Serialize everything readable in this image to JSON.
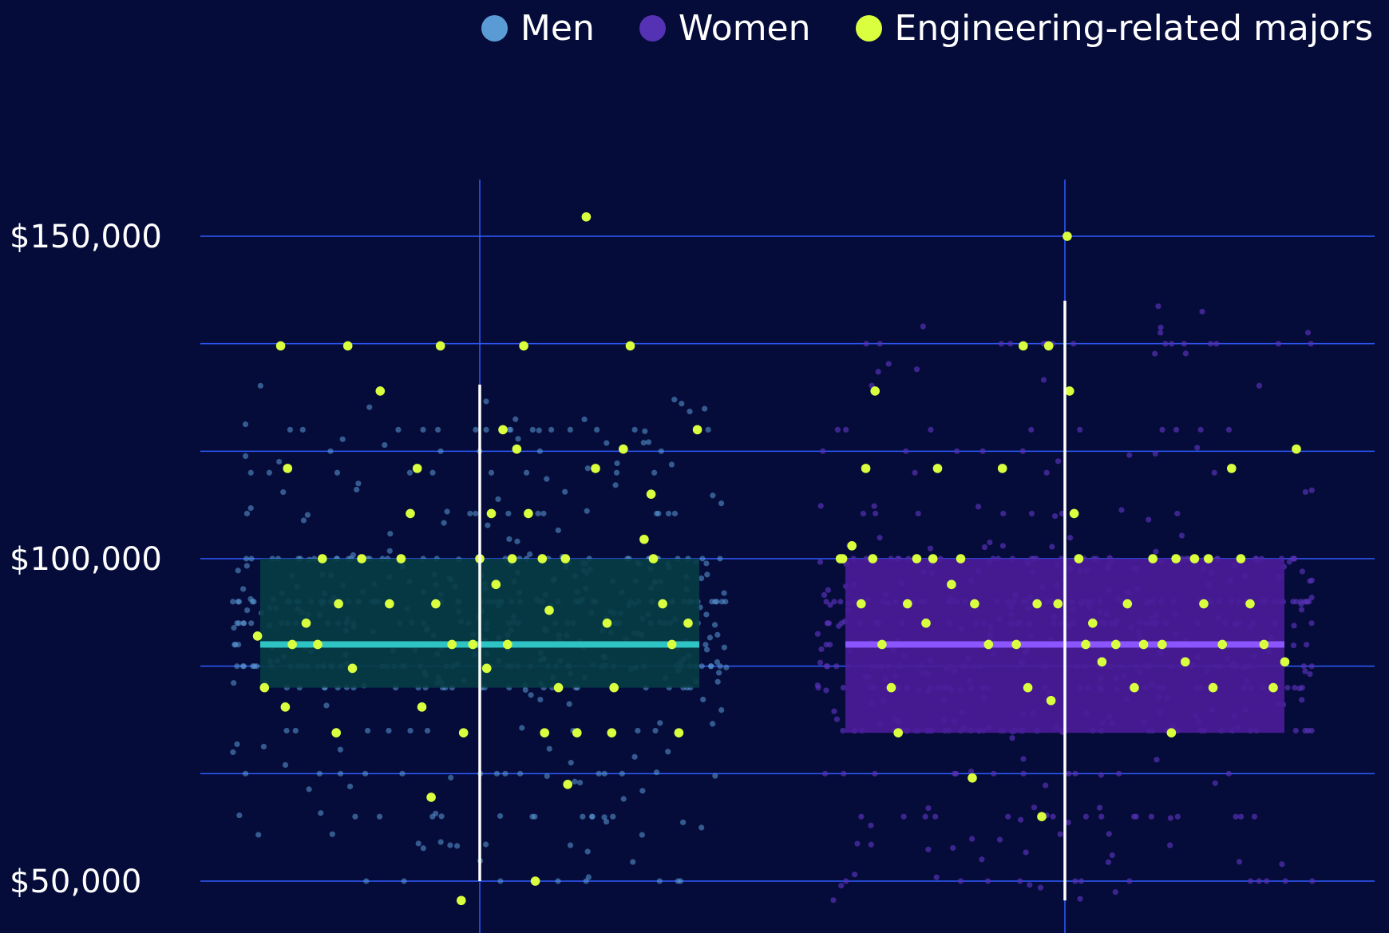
{
  "legend": {
    "men": {
      "label": "Men",
      "color": "#5b9bd5"
    },
    "women": {
      "label": "Women",
      "color": "#5531b4"
    },
    "engineering": {
      "label": "Engineering-related majors",
      "color": "#d9ff3f"
    }
  },
  "colors": {
    "background": "#050c3a",
    "gridline": "#2f5bff",
    "men_box": "#063d45",
    "men_median": "#2ec4c4",
    "women_box": "#4b1c99",
    "women_median": "#8b55ff",
    "whisker": "#ffffff"
  },
  "chart_data": {
    "type": "box",
    "title": "",
    "xlabel": "",
    "ylabel": "",
    "ylim": [
      43000,
      160000
    ],
    "y_ticks": [
      50000,
      66667,
      83333,
      100000,
      116667,
      133333,
      150000
    ],
    "y_tick_labels": {
      "50000": "$50,000",
      "100000": "$100,000",
      "150000": "$150,000"
    },
    "grid": true,
    "legend_position": "top-right",
    "groups": [
      {
        "name": "Men",
        "q1": 80000,
        "median": 86700,
        "q3": 100000,
        "whisker_low": 50000,
        "whisker_high": 127000,
        "point_color": "#5b9bd5",
        "highlight_points": [
          [
            -0.96,
            88000
          ],
          [
            -0.93,
            80000
          ],
          [
            -0.84,
            77000
          ],
          [
            -0.83,
            114000
          ],
          [
            -0.81,
            86700
          ],
          [
            -0.75,
            90000
          ],
          [
            -0.7,
            86700
          ],
          [
            -0.68,
            100000
          ],
          [
            -0.61,
            93000
          ],
          [
            -0.57,
            133000
          ],
          [
            -0.55,
            83000
          ],
          [
            -0.51,
            100000
          ],
          [
            -0.43,
            126000
          ],
          [
            -0.39,
            93000
          ],
          [
            -0.34,
            100000
          ],
          [
            -0.3,
            107000
          ],
          [
            -0.27,
            114000
          ],
          [
            -0.25,
            77000
          ],
          [
            -0.21,
            63000
          ],
          [
            -0.19,
            93000
          ],
          [
            -0.17,
            133000
          ],
          [
            -0.12,
            86700
          ],
          [
            -0.07,
            73000
          ],
          [
            -0.03,
            86700
          ],
          [
            0.0,
            100000
          ],
          [
            0.03,
            83000
          ],
          [
            0.05,
            107000
          ],
          [
            0.07,
            96000
          ],
          [
            0.1,
            120000
          ],
          [
            0.12,
            86700
          ],
          [
            0.14,
            100000
          ],
          [
            0.16,
            117000
          ],
          [
            0.19,
            133000
          ],
          [
            0.21,
            107000
          ],
          [
            0.24,
            50000
          ],
          [
            0.27,
            100000
          ],
          [
            0.3,
            92000
          ],
          [
            0.34,
            80000
          ],
          [
            0.37,
            100000
          ],
          [
            0.42,
            73000
          ],
          [
            0.46,
            153000
          ],
          [
            0.5,
            114000
          ],
          [
            0.55,
            90000
          ],
          [
            0.58,
            80000
          ],
          [
            0.62,
            117000
          ],
          [
            0.65,
            133000
          ],
          [
            0.71,
            103000
          ],
          [
            0.75,
            100000
          ],
          [
            0.79,
            93000
          ],
          [
            0.83,
            86700
          ],
          [
            0.86,
            73000
          ],
          [
            0.9,
            90000
          ],
          [
            0.94,
            120000
          ],
          [
            -0.86,
            133000
          ],
          [
            -0.62,
            73000
          ],
          [
            0.38,
            65000
          ],
          [
            -0.08,
            47000
          ],
          [
            0.28,
            73000
          ],
          [
            0.57,
            73000
          ],
          [
            0.74,
            110000
          ]
        ]
      },
      {
        "name": "Women",
        "q1": 73000,
        "median": 86700,
        "q3": 100000,
        "whisker_low": 47000,
        "whisker_high": 140000,
        "point_color": "#5531b4",
        "highlight_points": [
          [
            -0.96,
            100000
          ],
          [
            -0.92,
            102000
          ],
          [
            -0.88,
            93000
          ],
          [
            -0.86,
            114000
          ],
          [
            -0.82,
            126000
          ],
          [
            -0.79,
            86700
          ],
          [
            -0.75,
            80000
          ],
          [
            -0.72,
            73000
          ],
          [
            -0.68,
            93000
          ],
          [
            -0.64,
            100000
          ],
          [
            -0.6,
            90000
          ],
          [
            -0.55,
            114000
          ],
          [
            -0.49,
            96000
          ],
          [
            -0.45,
            100000
          ],
          [
            -0.39,
            93000
          ],
          [
            -0.33,
            86700
          ],
          [
            -0.27,
            114000
          ],
          [
            -0.21,
            86700
          ],
          [
            -0.16,
            80000
          ],
          [
            -0.12,
            93000
          ],
          [
            -0.1,
            60000
          ],
          [
            -0.07,
            133000
          ],
          [
            -0.03,
            93000
          ],
          [
            0.01,
            150000
          ],
          [
            0.02,
            126000
          ],
          [
            0.04,
            107000
          ],
          [
            0.06,
            100000
          ],
          [
            0.09,
            86700
          ],
          [
            0.12,
            90000
          ],
          [
            0.16,
            84000
          ],
          [
            0.22,
            86700
          ],
          [
            0.27,
            93000
          ],
          [
            0.3,
            80000
          ],
          [
            0.34,
            86700
          ],
          [
            0.38,
            100000
          ],
          [
            0.42,
            86700
          ],
          [
            0.46,
            73000
          ],
          [
            0.52,
            84000
          ],
          [
            0.56,
            100000
          ],
          [
            0.6,
            93000
          ],
          [
            0.64,
            80000
          ],
          [
            0.68,
            86700
          ],
          [
            0.72,
            114000
          ],
          [
            0.76,
            100000
          ],
          [
            0.8,
            93000
          ],
          [
            0.86,
            86700
          ],
          [
            0.9,
            80000
          ],
          [
            0.95,
            84000
          ],
          [
            1.0,
            117000
          ],
          [
            -0.97,
            100000
          ],
          [
            -0.83,
            100000
          ],
          [
            -0.57,
            100000
          ],
          [
            -0.4,
            66000
          ],
          [
            -0.06,
            78000
          ],
          [
            0.48,
            100000
          ],
          [
            0.62,
            100000
          ],
          [
            -0.18,
            133000
          ]
        ]
      }
    ]
  }
}
